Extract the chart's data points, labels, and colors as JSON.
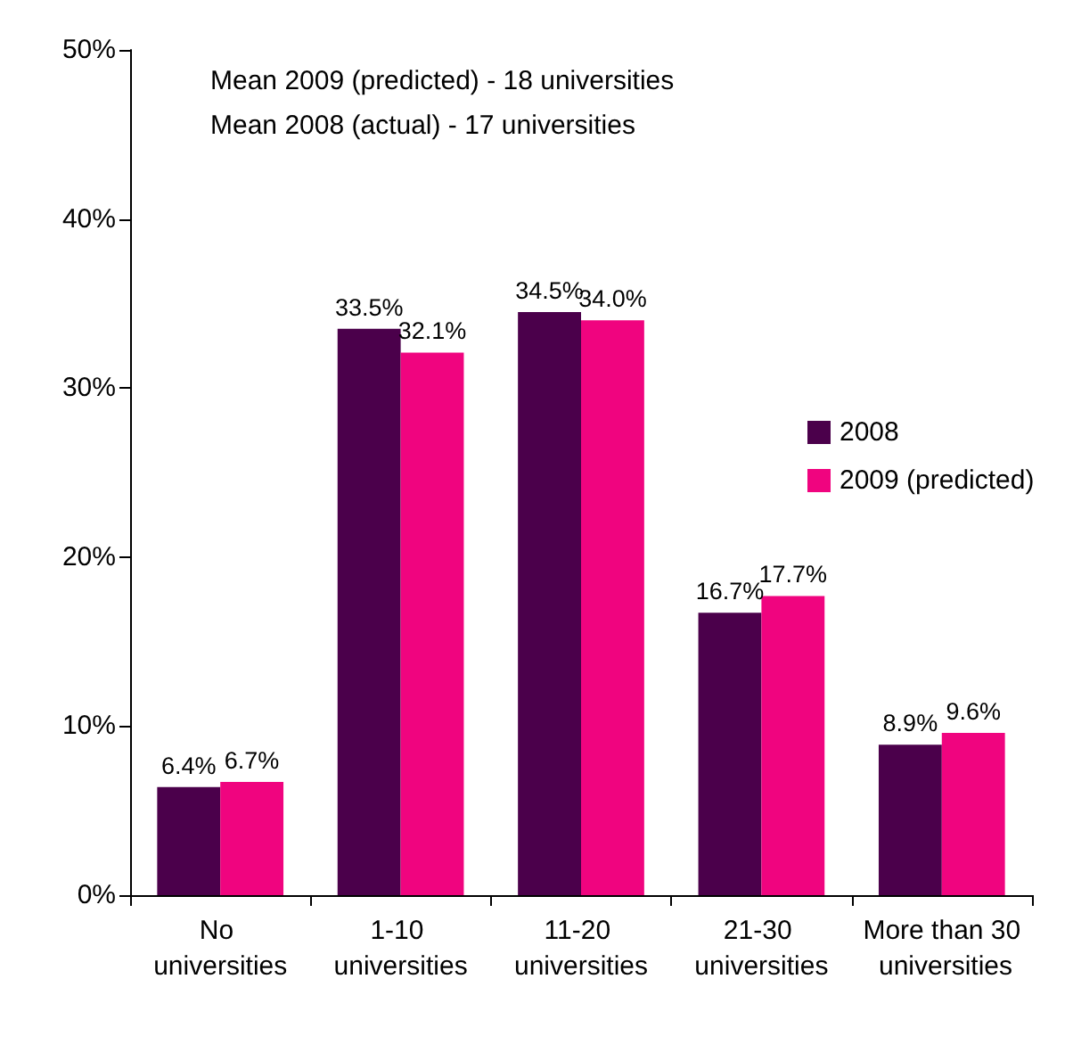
{
  "chart_data": {
    "type": "bar",
    "categories": [
      "No universities",
      "1-10 universities",
      "11-20 universities",
      "21-30 universities",
      "More than 30 universities"
    ],
    "series": [
      {
        "name": "2008",
        "color": "#4b004b",
        "values": [
          6.4,
          33.5,
          34.5,
          16.7,
          8.9
        ],
        "value_labels": [
          "6.4%",
          "33.5%",
          "34.5%",
          "16.7%",
          "8.9%"
        ]
      },
      {
        "name": "2009 (predicted)",
        "color": "#f0047f",
        "values": [
          6.7,
          32.1,
          34.0,
          17.7,
          9.6
        ],
        "value_labels": [
          "6.7%",
          "32.1%",
          "34.0%",
          "17.7%",
          "9.6%"
        ]
      }
    ],
    "ylim": [
      0,
      50
    ],
    "yticks": [
      {
        "value": 0,
        "label": "0%"
      },
      {
        "value": 10,
        "label": "10%"
      },
      {
        "value": 20,
        "label": "20%"
      },
      {
        "value": 30,
        "label": "30%"
      },
      {
        "value": 40,
        "label": "40%"
      },
      {
        "value": 50,
        "label": "50%"
      }
    ],
    "annotations": [
      "Mean 2009 (predicted) - 18 universities",
      "Mean 2008 (actual) - 17 universities"
    ],
    "grid": false,
    "legend": "right"
  }
}
